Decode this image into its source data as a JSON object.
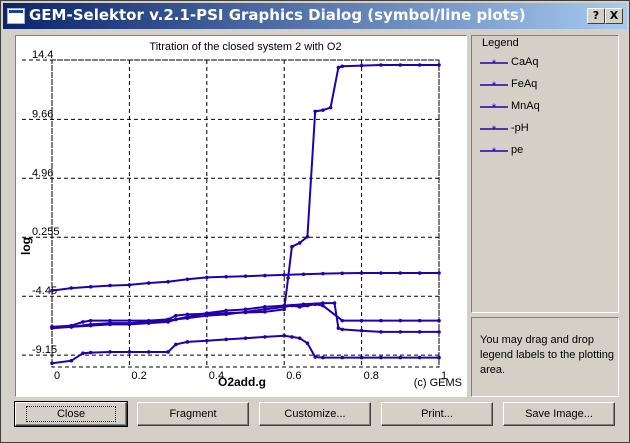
{
  "window": {
    "title": "GEM-Selektor v.2.1-PSI Graphics Dialog (symbol/line plots)",
    "help_label": "?",
    "close_label": "X"
  },
  "chart_data": {
    "type": "line",
    "title": "Titration of the closed system 2 with O2",
    "xlabel": "O2add.g",
    "ylabel": "log",
    "xlim": [
      0,
      1
    ],
    "ylim": [
      -10.1,
      14.4
    ],
    "x_ticks": [
      "0",
      "0.2",
      "0.4",
      "0.6",
      "0.8",
      "1"
    ],
    "y_ticks": [
      "14.4",
      "9.66",
      "4.96",
      "0.255",
      "-4.45",
      "-9.15"
    ],
    "grid": true,
    "annotation": "(c) GEMS",
    "series": [
      {
        "name": "CaAq",
        "x": [
          0,
          0.05,
          0.1,
          0.15,
          0.2,
          0.25,
          0.3,
          0.35,
          0.4,
          0.45,
          0.5,
          0.55,
          0.6,
          0.65,
          0.7,
          0.75,
          0.8,
          0.85,
          0.9,
          0.95,
          1.0
        ],
        "y": [
          -4.0,
          -3.8,
          -3.7,
          -3.6,
          -3.55,
          -3.4,
          -3.3,
          -3.1,
          -2.95,
          -2.9,
          -2.85,
          -2.8,
          -2.75,
          -2.7,
          -2.65,
          -2.62,
          -2.6,
          -2.6,
          -2.6,
          -2.6,
          -2.6
        ]
      },
      {
        "name": "FeAq",
        "x": [
          0,
          0.05,
          0.08,
          0.1,
          0.15,
          0.2,
          0.25,
          0.3,
          0.32,
          0.35,
          0.4,
          0.45,
          0.5,
          0.55,
          0.6,
          0.61,
          0.62,
          0.64,
          0.66,
          0.68,
          0.7,
          0.72,
          0.74,
          0.75,
          0.8,
          0.85,
          0.9,
          0.95,
          1.0
        ],
        "y": [
          -6.9,
          -6.8,
          -6.5,
          -6.4,
          -6.4,
          -6.4,
          -6.4,
          -6.3,
          -6.0,
          -5.9,
          -5.85,
          -5.8,
          -5.75,
          -5.7,
          -5.5,
          -3.0,
          -0.5,
          -0.2,
          0.3,
          10.3,
          10.4,
          10.6,
          13.8,
          13.9,
          13.95,
          14.0,
          14.0,
          14.0,
          14.0
        ]
      },
      {
        "name": "MnAq",
        "x": [
          0,
          0.05,
          0.1,
          0.15,
          0.2,
          0.25,
          0.3,
          0.32,
          0.35,
          0.4,
          0.45,
          0.5,
          0.55,
          0.6,
          0.65,
          0.7,
          0.73,
          0.74,
          0.75,
          0.8,
          0.85,
          0.9,
          0.95,
          1.0
        ],
        "y": [
          -6.9,
          -6.9,
          -6.7,
          -6.6,
          -6.6,
          -6.5,
          -6.4,
          -6.3,
          -6.1,
          -5.8,
          -5.6,
          -5.5,
          -5.3,
          -5.2,
          -5.1,
          -5.0,
          -5.0,
          -7.0,
          -7.1,
          -7.2,
          -7.3,
          -7.3,
          -7.3,
          -7.3
        ]
      },
      {
        "name": "-pH",
        "x": [
          0,
          0.05,
          0.1,
          0.15,
          0.2,
          0.25,
          0.3,
          0.32,
          0.35,
          0.4,
          0.45,
          0.5,
          0.55,
          0.6,
          0.62,
          0.64,
          0.66,
          0.68,
          0.7,
          0.75,
          0.8,
          0.85,
          0.9,
          0.95,
          1.0
        ],
        "y": [
          -7.0,
          -6.9,
          -6.8,
          -6.7,
          -6.7,
          -6.6,
          -6.5,
          -6.3,
          -6.2,
          -6.0,
          -5.9,
          -5.7,
          -5.5,
          -5.3,
          -5.2,
          -5.3,
          -5.2,
          -5.1,
          -5.2,
          -6.4,
          -6.4,
          -6.4,
          -6.4,
          -6.4,
          -6.4
        ]
      },
      {
        "name": "pe",
        "x": [
          0,
          0.05,
          0.08,
          0.1,
          0.15,
          0.2,
          0.25,
          0.3,
          0.32,
          0.35,
          0.4,
          0.45,
          0.5,
          0.55,
          0.6,
          0.62,
          0.64,
          0.66,
          0.68,
          0.7,
          0.75,
          0.8,
          0.85,
          0.9,
          0.95,
          1.0
        ],
        "y": [
          -9.8,
          -9.6,
          -9.0,
          -8.95,
          -8.9,
          -8.9,
          -8.9,
          -8.9,
          -8.3,
          -8.1,
          -8.0,
          -7.9,
          -7.8,
          -7.7,
          -7.6,
          -7.7,
          -7.8,
          -8.2,
          -9.3,
          -9.35,
          -9.35,
          -9.35,
          -9.35,
          -9.35,
          -9.35,
          -9.35
        ]
      }
    ]
  },
  "series_color": "#2200aa",
  "legend": {
    "title": "Legend"
  },
  "info_text": "You may drag and drop legend labels to the plotting area.",
  "buttons": {
    "close": "Close",
    "fragment": "Fragment",
    "customize": "Customize...",
    "print": "Print...",
    "save_image": "Save Image..."
  }
}
